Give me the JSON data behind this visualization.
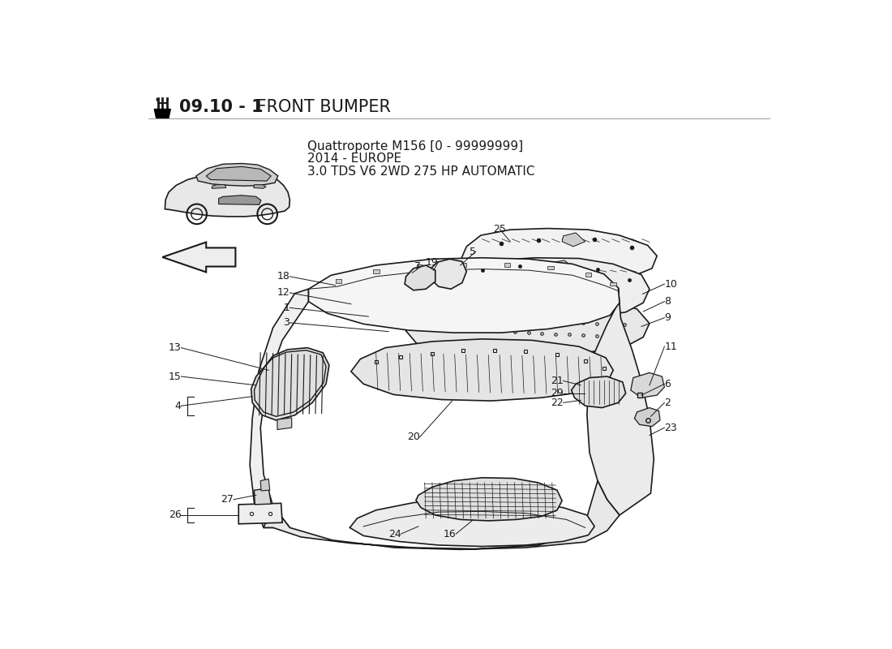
{
  "title_bold": "09.10 - 1",
  "title_normal": " FRONT BUMPER",
  "subtitle_lines": [
    "Quattroporte M156 [0 - 99999999]",
    "2014 - EUROPE",
    "3.0 TDS V6 2WD 275 HP AUTOMATIC"
  ],
  "background_color": "#ffffff",
  "line_color": "#1a1a1a",
  "fill_light": "#f0f0f0",
  "fill_mid": "#e0e0e0",
  "fill_dark": "#c8c8c8",
  "font_size_title": 15,
  "font_size_label": 9,
  "font_size_subtitle": 11
}
